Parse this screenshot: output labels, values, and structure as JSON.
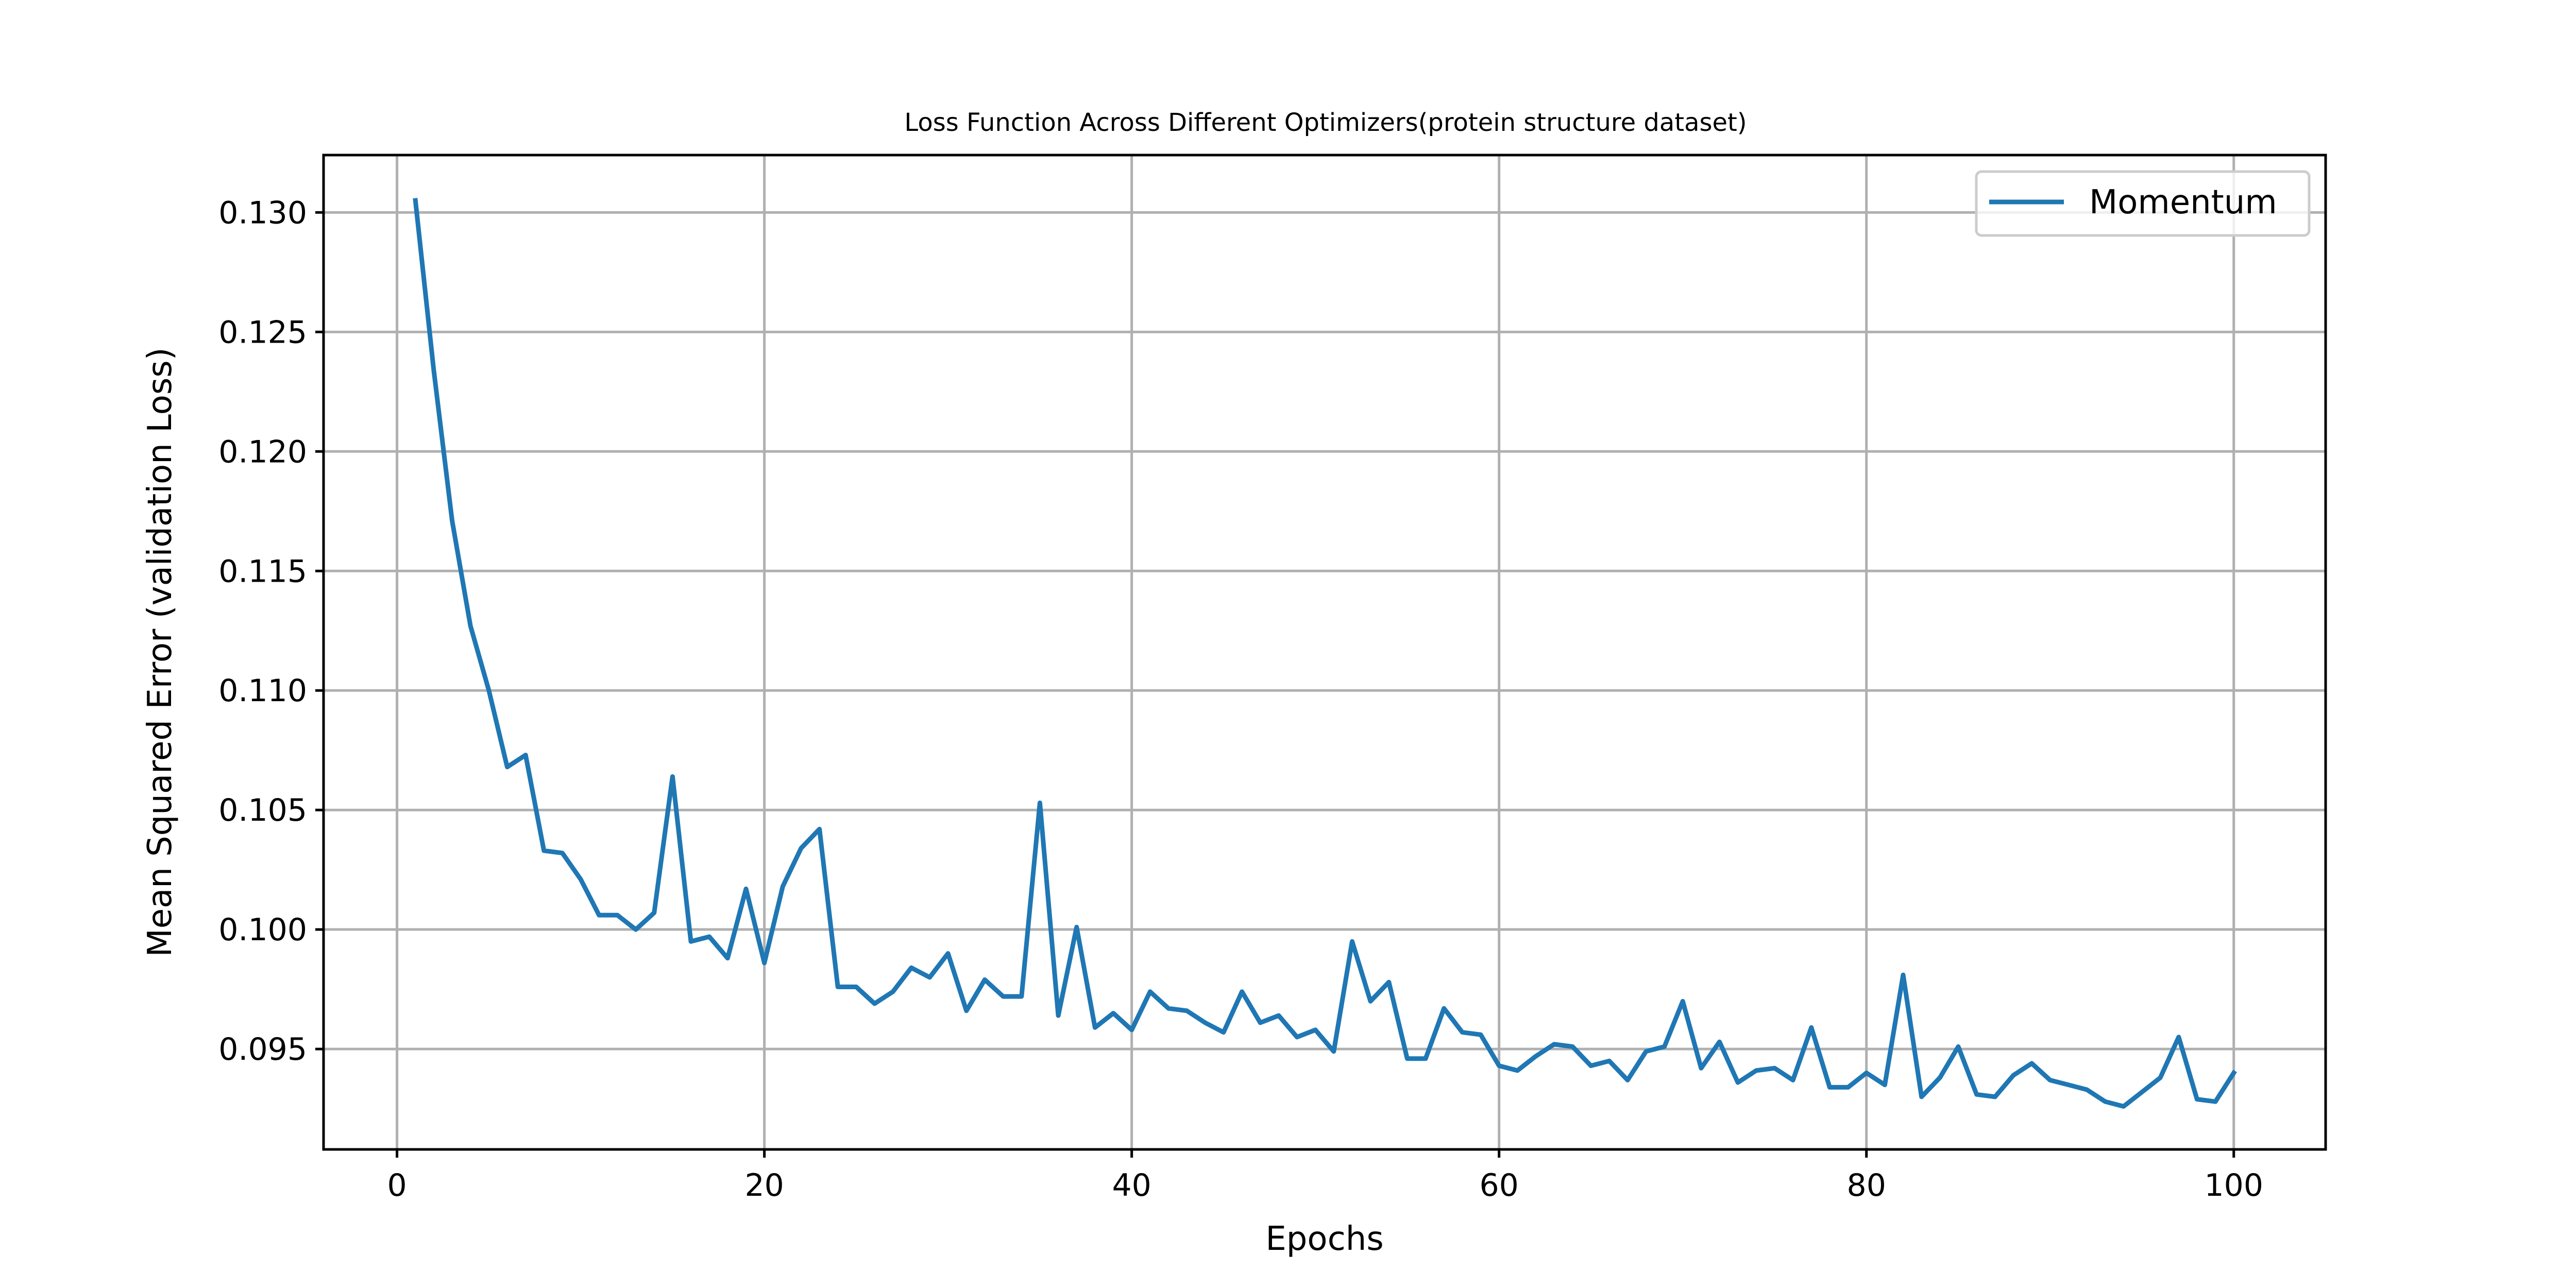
{
  "chart_data": {
    "type": "line",
    "title": "Loss Function Across Different Optimizers(protein structure dataset)",
    "xlabel": "Epochs",
    "ylabel": "Mean Squared Error (validation Loss)",
    "xlim": [
      -4,
      105
    ],
    "ylim": [
      0.0908,
      0.1324
    ],
    "xticks": [
      0,
      20,
      40,
      60,
      80,
      100
    ],
    "xtick_labels": [
      "0",
      "20",
      "40",
      "60",
      "80",
      "100"
    ],
    "yticks": [
      0.095,
      0.1,
      0.105,
      0.11,
      0.115,
      0.12,
      0.125,
      0.13
    ],
    "ytick_labels": [
      "0.095",
      "0.100",
      "0.105",
      "0.110",
      "0.115",
      "0.120",
      "0.125",
      "0.130"
    ],
    "grid": true,
    "legend_position": "top-right",
    "series": [
      {
        "name": "Momentum",
        "color": "#1f77b4",
        "x": [
          1,
          2,
          3,
          4,
          5,
          6,
          7,
          8,
          9,
          10,
          11,
          12,
          13,
          14,
          15,
          16,
          17,
          18,
          19,
          20,
          21,
          22,
          23,
          24,
          25,
          26,
          27,
          28,
          29,
          30,
          31,
          32,
          33,
          34,
          35,
          36,
          37,
          38,
          39,
          40,
          41,
          42,
          43,
          44,
          45,
          46,
          47,
          48,
          49,
          50,
          51,
          52,
          53,
          54,
          55,
          56,
          57,
          58,
          59,
          60,
          61,
          62,
          63,
          64,
          65,
          66,
          67,
          68,
          69,
          70,
          71,
          72,
          73,
          74,
          75,
          76,
          77,
          78,
          79,
          80,
          81,
          82,
          83,
          84,
          85,
          86,
          87,
          88,
          89,
          90,
          91,
          92,
          93,
          94,
          95,
          96,
          97,
          98,
          99,
          100
        ],
        "y": [
          0.1305,
          0.1234,
          0.1171,
          0.1127,
          0.11,
          0.1068,
          0.1073,
          0.1033,
          0.1032,
          0.1021,
          0.1006,
          0.1006,
          0.1,
          0.1007,
          0.1064,
          0.0995,
          0.0997,
          0.0988,
          0.1017,
          0.0986,
          0.1018,
          0.1034,
          0.1042,
          0.0976,
          0.0976,
          0.0969,
          0.0974,
          0.0984,
          0.098,
          0.099,
          0.0966,
          0.0979,
          0.0972,
          0.0972,
          0.1053,
          0.0964,
          0.1001,
          0.0959,
          0.0965,
          0.0958,
          0.0974,
          0.0967,
          0.0966,
          0.0961,
          0.0957,
          0.0974,
          0.0961,
          0.0964,
          0.0955,
          0.0958,
          0.0949,
          0.0995,
          0.097,
          0.0978,
          0.0946,
          0.0946,
          0.0967,
          0.0957,
          0.0956,
          0.0943,
          0.0941,
          0.0947,
          0.0952,
          0.0951,
          0.0943,
          0.0945,
          0.0937,
          0.0949,
          0.0951,
          0.097,
          0.0942,
          0.0953,
          0.0936,
          0.0941,
          0.0942,
          0.0937,
          0.0959,
          0.0934,
          0.0934,
          0.094,
          0.0935,
          0.0981,
          0.093,
          0.0938,
          0.0951,
          0.0931,
          0.093,
          0.0939,
          0.0944,
          0.0937,
          0.0935,
          0.0933,
          0.0928,
          0.0926,
          0.0932,
          0.0938,
          0.0955,
          0.0929,
          0.0928,
          0.094
        ]
      }
    ]
  }
}
